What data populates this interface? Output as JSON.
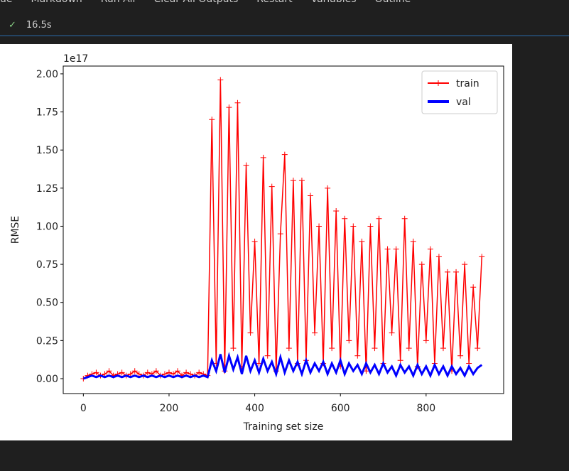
{
  "toolbar": {
    "items": [
      "ue",
      "Markdown",
      "Run All",
      "Clear All Outputs",
      "Restart",
      "Variables",
      "Outline"
    ]
  },
  "cell_status": {
    "time": "16.5s"
  },
  "chart_data": {
    "type": "line",
    "xlabel": "Training set size",
    "ylabel": "RMSE",
    "y_offset_label": "1e17",
    "x": [
      0,
      10,
      20,
      30,
      40,
      50,
      60,
      70,
      80,
      90,
      100,
      110,
      120,
      130,
      140,
      150,
      160,
      170,
      180,
      190,
      200,
      210,
      220,
      230,
      240,
      250,
      260,
      270,
      280,
      290,
      300,
      310,
      320,
      330,
      340,
      350,
      360,
      370,
      380,
      390,
      400,
      410,
      420,
      430,
      440,
      450,
      460,
      470,
      480,
      490,
      500,
      510,
      520,
      530,
      540,
      550,
      560,
      570,
      580,
      590,
      600,
      610,
      620,
      630,
      640,
      650,
      660,
      670,
      680,
      690,
      700,
      710,
      720,
      730,
      740,
      750,
      760,
      770,
      780,
      790,
      800,
      810,
      820,
      830,
      840,
      850,
      860,
      870,
      880,
      890,
      900,
      910,
      920,
      930
    ],
    "series": [
      {
        "name": "train",
        "color": "#ff0000",
        "marker": "+",
        "values": [
          0.0,
          0.02,
          0.03,
          0.04,
          0.02,
          0.03,
          0.05,
          0.02,
          0.03,
          0.04,
          0.02,
          0.03,
          0.05,
          0.03,
          0.02,
          0.04,
          0.03,
          0.05,
          0.02,
          0.03,
          0.04,
          0.03,
          0.05,
          0.02,
          0.04,
          0.03,
          0.02,
          0.04,
          0.03,
          0.02,
          1.7,
          0.1,
          1.96,
          0.05,
          1.78,
          0.2,
          1.81,
          0.08,
          1.4,
          0.3,
          0.9,
          0.1,
          1.45,
          0.15,
          1.26,
          0.05,
          0.95,
          1.47,
          0.2,
          1.3,
          0.1,
          1.3,
          0.12,
          1.2,
          0.3,
          1.0,
          0.1,
          1.25,
          0.2,
          1.1,
          0.08,
          1.05,
          0.25,
          1.0,
          0.15,
          0.9,
          0.05,
          1.0,
          0.2,
          1.05,
          0.1,
          0.85,
          0.3,
          0.85,
          0.12,
          1.05,
          0.2,
          0.9,
          0.08,
          0.75,
          0.25,
          0.85,
          0.1,
          0.8,
          0.2,
          0.7,
          0.05,
          0.7,
          0.15,
          0.75,
          0.1,
          0.6,
          0.2,
          0.8
        ]
      },
      {
        "name": "val",
        "color": "#0000ff",
        "values": [
          0.0,
          0.01,
          0.02,
          0.01,
          0.02,
          0.01,
          0.02,
          0.01,
          0.02,
          0.01,
          0.02,
          0.01,
          0.02,
          0.01,
          0.02,
          0.01,
          0.02,
          0.01,
          0.02,
          0.01,
          0.02,
          0.01,
          0.02,
          0.01,
          0.02,
          0.01,
          0.02,
          0.01,
          0.02,
          0.01,
          0.12,
          0.05,
          0.16,
          0.04,
          0.15,
          0.06,
          0.14,
          0.03,
          0.15,
          0.05,
          0.12,
          0.04,
          0.13,
          0.05,
          0.11,
          0.03,
          0.14,
          0.04,
          0.12,
          0.05,
          0.11,
          0.03,
          0.12,
          0.04,
          0.1,
          0.05,
          0.11,
          0.03,
          0.1,
          0.04,
          0.12,
          0.03,
          0.1,
          0.05,
          0.09,
          0.03,
          0.1,
          0.04,
          0.09,
          0.03,
          0.1,
          0.04,
          0.08,
          0.02,
          0.09,
          0.04,
          0.08,
          0.02,
          0.09,
          0.03,
          0.08,
          0.02,
          0.09,
          0.03,
          0.08,
          0.02,
          0.08,
          0.03,
          0.07,
          0.02,
          0.08,
          0.03,
          0.07,
          0.09
        ]
      }
    ],
    "xlim": [
      -47,
      981
    ],
    "xticks": [
      0,
      200,
      400,
      600,
      800
    ],
    "ylim": [
      -0.098,
      2.051
    ],
    "yticks": [
      {
        "value": 0,
        "label": "0.00"
      },
      0.25,
      {
        "value": 0.5,
        "label": "0.50"
      },
      0.75,
      {
        "value": 1,
        "label": "1.00"
      },
      1.25,
      {
        "value": 1.5,
        "label": "1.50"
      },
      1.75,
      {
        "value": 2,
        "label": "2.00"
      }
    ],
    "legend": "upper right",
    "grid": false
  }
}
